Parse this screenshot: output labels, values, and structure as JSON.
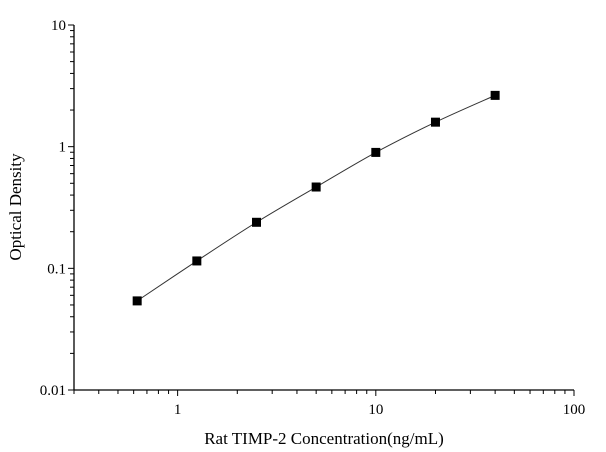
{
  "chart_data": {
    "type": "line",
    "title": "",
    "xlabel": "Rat TIMP-2 Concentration(ng/mL)",
    "ylabel": "Optical Density",
    "xscale": "log",
    "yscale": "log",
    "xlim": [
      0.3,
      100
    ],
    "ylim": [
      0.01,
      10
    ],
    "xticks": [
      1,
      10,
      100
    ],
    "xtick_labels": [
      "1",
      "10",
      "100"
    ],
    "yticks": [
      0.01,
      0.1,
      1,
      10
    ],
    "ytick_labels": [
      "0.01",
      "0.1",
      "1",
      "10"
    ],
    "grid": false,
    "marker": "square",
    "color": "#000000",
    "series": [
      {
        "x": [
          0.625,
          1.25,
          2.5,
          5,
          10,
          20,
          40
        ],
        "y": [
          0.054,
          0.115,
          0.239,
          0.466,
          0.897,
          1.59,
          2.64
        ]
      }
    ]
  }
}
